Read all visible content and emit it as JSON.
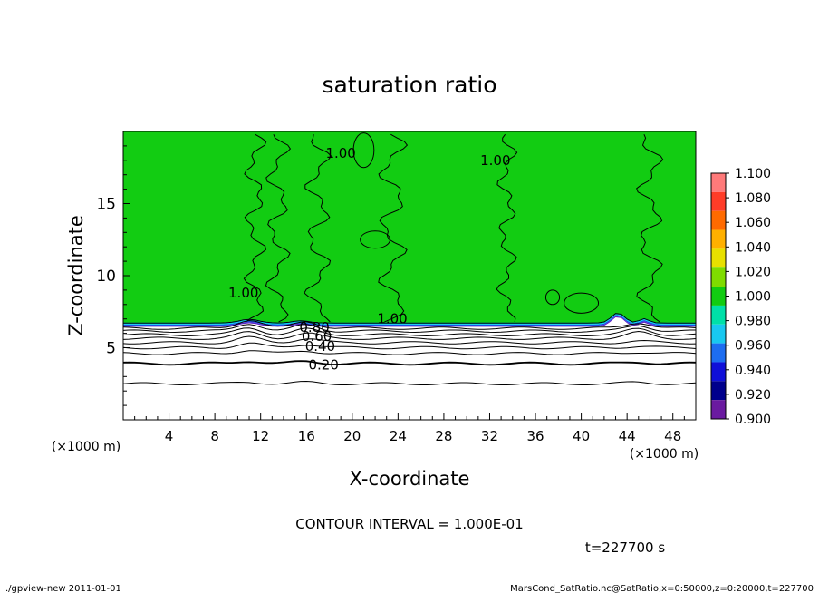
{
  "chart_data": {
    "type": "contour",
    "title": "saturation ratio",
    "xlabel": "X-coordinate",
    "ylabel": "Z-coordinate",
    "x_unit": "(×1000 m)",
    "y_unit": "(×1000 m)",
    "xlim": [
      0,
      50
    ],
    "ylim": [
      0,
      20
    ],
    "x_ticks": [
      4,
      8,
      12,
      16,
      20,
      24,
      28,
      32,
      36,
      40,
      44,
      48
    ],
    "y_ticks": [
      5,
      10,
      15
    ],
    "grid": false,
    "contour_interval_text": "CONTOUR INTERVAL = 1.000E-01",
    "time_text": "t=227700 s",
    "contour_labels": [
      {
        "text": "0.20",
        "x": 17.5,
        "y": 3.8
      },
      {
        "text": "0.40",
        "x": 17.2,
        "y": 5.1
      },
      {
        "text": "0.60",
        "x": 16.9,
        "y": 5.8
      },
      {
        "text": "0.80",
        "x": 16.7,
        "y": 6.4
      },
      {
        "text": "1.00",
        "x": 23.5,
        "y": 7.0
      },
      {
        "text": "1.00",
        "x": 10.5,
        "y": 8.8
      },
      {
        "text": "1.00",
        "x": 19.0,
        "y": 18.5
      },
      {
        "text": "1.00",
        "x": 32.5,
        "y": 18.0
      }
    ],
    "colorbar": {
      "levels": [
        "1.100",
        "1.080",
        "1.060",
        "1.040",
        "1.020",
        "1.000",
        "0.980",
        "0.960",
        "0.940",
        "0.920",
        "0.900"
      ],
      "colors": [
        "#ff7a7a",
        "#ff3c28",
        "#ff6a00",
        "#ffb000",
        "#e8e000",
        "#7fdc00",
        "#11cc11",
        "#00e0a8",
        "#18c8f0",
        "#1d6df0",
        "#1010d8",
        "#00008c",
        "#6a1aa0"
      ]
    }
  },
  "footer": {
    "left": "./gpview-new   2011-01-01",
    "right": "MarsCond_SatRatio.nc@SatRatio,x=0:50000,z=0:20000,t=227700"
  },
  "colors": {
    "field_green": "#12cc12",
    "lower_white": "#ffffff",
    "cyan_band": "#00d8f0",
    "blue_band": "#1d4de8",
    "purple_band": "#6020c0"
  }
}
